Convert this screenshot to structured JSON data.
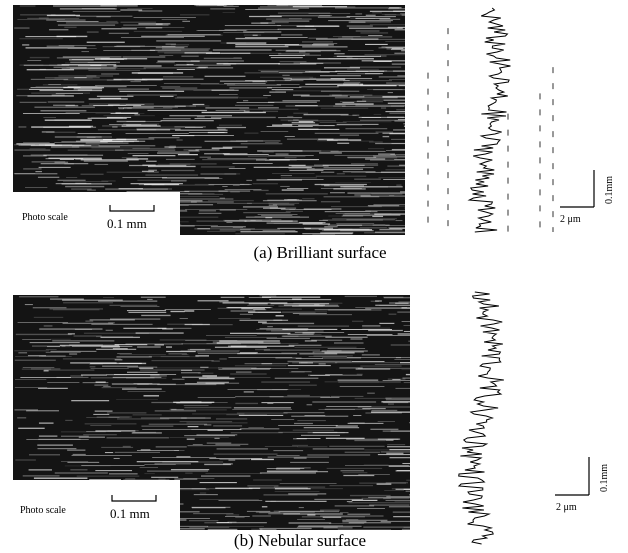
{
  "panels": [
    {
      "caption": "(a) Brilliant surface",
      "photo_scale_label": "Photo scale",
      "photo_scale_value": "0.1 mm",
      "profile_horizontal_scale": "2 μm",
      "profile_vertical_scale": "0.1mm"
    },
    {
      "caption": "(b) Nebular surface",
      "photo_scale_label": "Photo scale",
      "photo_scale_value": "0.1 mm",
      "profile_horizontal_scale": "2 μm",
      "profile_vertical_scale": "0.1mm"
    }
  ]
}
